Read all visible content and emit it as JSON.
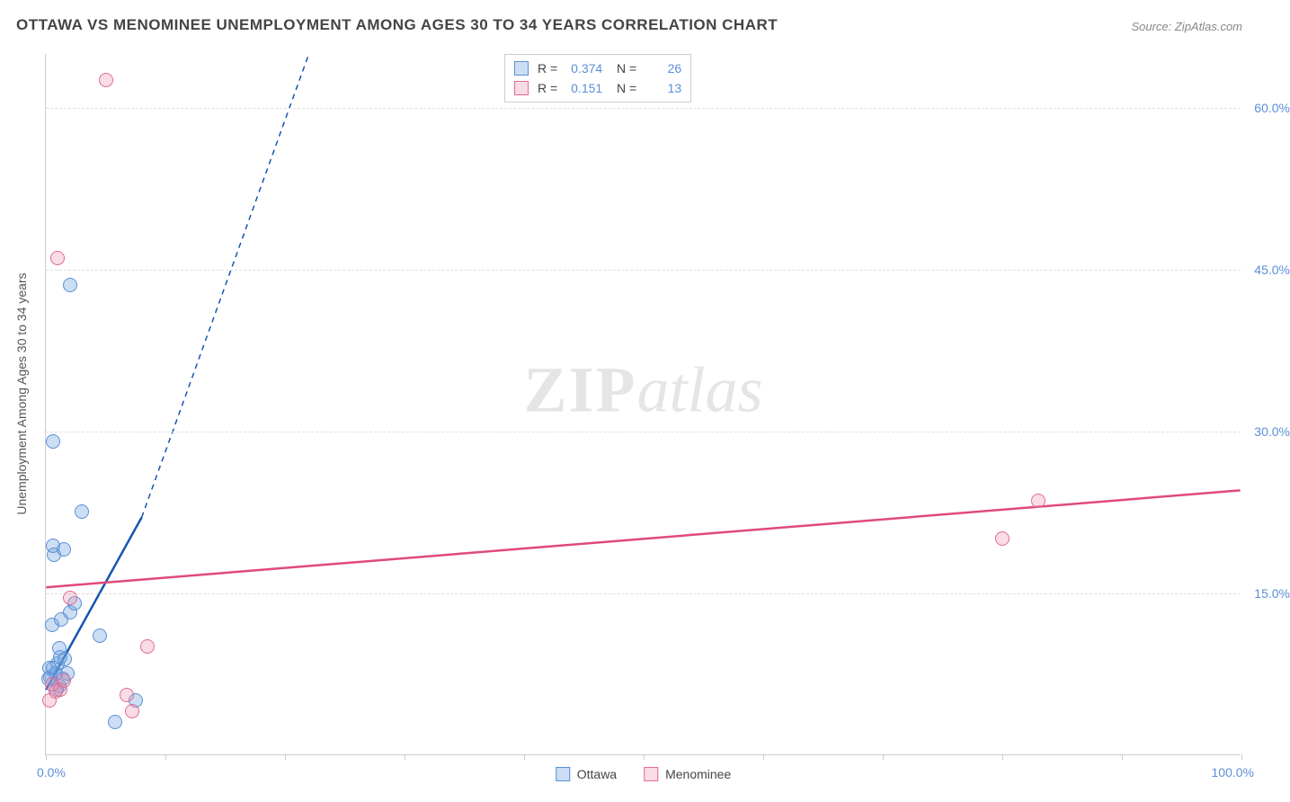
{
  "title": "OTTAWA VS MENOMINEE UNEMPLOYMENT AMONG AGES 30 TO 34 YEARS CORRELATION CHART",
  "source": "Source: ZipAtlas.com",
  "watermark": {
    "zip": "ZIP",
    "atlas": "atlas"
  },
  "y_axis_title": "Unemployment Among Ages 30 to 34 years",
  "x_axis": {
    "min_label": "0.0%",
    "max_label": "100.0%",
    "min": 0,
    "max": 100,
    "tick_count": 11
  },
  "y_axis": {
    "min": 0,
    "max": 65,
    "ticks": [
      {
        "value": 15,
        "label": "15.0%"
      },
      {
        "value": 30,
        "label": "30.0%"
      },
      {
        "value": 45,
        "label": "45.0%"
      },
      {
        "value": 60,
        "label": "60.0%"
      }
    ]
  },
  "colors": {
    "ottawa_fill": "rgba(108,160,220,0.35)",
    "ottawa_stroke": "#5b8fd6",
    "menominee_fill": "rgba(235,140,170,0.30)",
    "menominee_stroke": "#e26a94",
    "ottawa_line": "#1556b0",
    "menominee_line": "#e04a7a",
    "grid": "#dddddd",
    "axis": "#cccccc",
    "tick_text": "#5b8fd6",
    "background": "#ffffff"
  },
  "marker_radius": 8,
  "series": [
    {
      "name": "Ottawa",
      "color_key": "ottawa",
      "stats": {
        "R": "0.374",
        "N": "26"
      },
      "trend": {
        "x1": 0,
        "y1": 6,
        "x2": 8,
        "y2": 22,
        "dash_x2": 22,
        "dash_y2": 65
      },
      "points": [
        [
          0.4,
          7.2
        ],
        [
          0.6,
          8.0
        ],
        [
          0.8,
          7.5
        ],
        [
          1.0,
          8.4
        ],
        [
          1.2,
          9.0
        ],
        [
          1.4,
          7.0
        ],
        [
          1.6,
          8.8
        ],
        [
          1.1,
          6.3
        ],
        [
          0.5,
          12.0
        ],
        [
          1.3,
          12.5
        ],
        [
          2.0,
          13.2
        ],
        [
          2.4,
          14.0
        ],
        [
          0.7,
          18.5
        ],
        [
          1.5,
          19.0
        ],
        [
          0.6,
          19.3
        ],
        [
          3.0,
          22.5
        ],
        [
          4.5,
          11.0
        ],
        [
          5.8,
          3.0
        ],
        [
          0.6,
          29.0
        ],
        [
          2.0,
          43.5
        ],
        [
          7.5,
          5.0
        ],
        [
          0.9,
          6.0
        ],
        [
          1.1,
          9.8
        ],
        [
          0.3,
          8.0
        ],
        [
          1.8,
          7.5
        ],
        [
          0.2,
          7.0
        ]
      ]
    },
    {
      "name": "Menominee",
      "color_key": "menominee",
      "stats": {
        "R": "0.151",
        "N": "13"
      },
      "trend": {
        "x1": 0,
        "y1": 15.5,
        "x2": 100,
        "y2": 24.5
      },
      "points": [
        [
          0.3,
          5.0
        ],
        [
          0.8,
          5.8
        ],
        [
          1.2,
          6.0
        ],
        [
          2.0,
          14.5
        ],
        [
          7.2,
          4.0
        ],
        [
          8.5,
          10.0
        ],
        [
          6.8,
          5.5
        ],
        [
          5.0,
          62.5
        ],
        [
          1.0,
          46.0
        ],
        [
          80.0,
          20.0
        ],
        [
          83.0,
          23.5
        ],
        [
          0.5,
          6.5
        ],
        [
          1.5,
          6.8
        ]
      ]
    }
  ],
  "legend": {
    "items": [
      {
        "label": "Ottawa",
        "color_key": "ottawa"
      },
      {
        "label": "Menominee",
        "color_key": "menominee"
      }
    ]
  }
}
